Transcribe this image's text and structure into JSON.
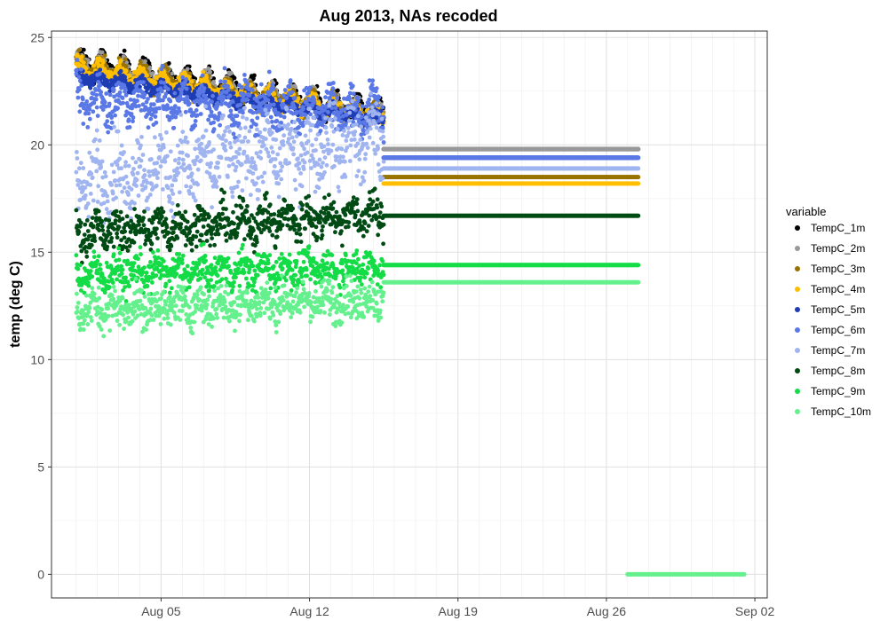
{
  "chart_data": {
    "type": "scatter",
    "title": "Aug 2013, NAs recoded",
    "xlabel": "",
    "ylabel": "temp (deg C)",
    "x_type": "date",
    "xlim": [
      "2013-07-30T20:00",
      "2013-09-02T14:00"
    ],
    "ylim": [
      -1.1,
      25.3
    ],
    "x_ticks": [
      {
        "date": "2013-08-05",
        "label": "Aug 05"
      },
      {
        "date": "2013-08-12",
        "label": "Aug 12"
      },
      {
        "date": "2013-08-19",
        "label": "Aug 19"
      },
      {
        "date": "2013-08-26",
        "label": "Aug 26"
      },
      {
        "date": "2013-09-02",
        "label": "Sep 02"
      }
    ],
    "y_ticks": [
      0,
      5,
      10,
      15,
      20,
      25
    ],
    "grid": true,
    "legend": {
      "title": "variable",
      "position": "right"
    },
    "series": [
      {
        "name": "TempC_1m",
        "color": "#000000",
        "measured": {
          "start": "2013-08-01T00:00",
          "end": "2013-08-15T12:00",
          "level_start": 23.9,
          "level_end": 21.4,
          "daily_amplitude": 0.45,
          "noise": 0.2
        },
        "flat": {
          "start": "2013-08-15T12:00",
          "end": "2013-08-27T12:00",
          "value": 19.8
        }
      },
      {
        "name": "TempC_2m",
        "color": "#999999",
        "measured": {
          "start": "2013-08-01T00:00",
          "end": "2013-08-15T12:00",
          "level_start": 23.8,
          "level_end": 21.4,
          "daily_amplitude": 0.4,
          "noise": 0.2
        },
        "flat": {
          "start": "2013-08-15T12:00",
          "end": "2013-08-27T12:00",
          "value": 19.8
        }
      },
      {
        "name": "TempC_3m",
        "color": "#997300",
        "measured": {
          "start": "2013-08-01T00:00",
          "end": "2013-08-15T12:00",
          "level_start": 23.7,
          "level_end": 21.3,
          "daily_amplitude": 0.35,
          "noise": 0.2
        },
        "flat": {
          "start": "2013-08-15T12:00",
          "end": "2013-08-27T12:00",
          "value": 18.5
        }
      },
      {
        "name": "TempC_4m",
        "color": "#FFBF00",
        "measured": {
          "start": "2013-08-01T00:00",
          "end": "2013-08-15T12:00",
          "level_start": 23.6,
          "level_end": 21.3,
          "daily_amplitude": 0.3,
          "noise": 0.2
        },
        "flat": {
          "start": "2013-08-15T12:00",
          "end": "2013-08-27T12:00",
          "value": 18.2
        }
      },
      {
        "name": "TempC_5m",
        "color": "#1E3CB4",
        "measured": {
          "start": "2013-08-01T00:00",
          "end": "2013-08-15T12:00",
          "level_start": 23.2,
          "level_end": 21.2,
          "daily_amplitude": 0.2,
          "noise": 0.15
        },
        "flat": {
          "start": "2013-08-15T12:00",
          "end": "2013-08-27T12:00",
          "value": 19.4
        }
      },
      {
        "name": "TempC_6m",
        "color": "#5A78E6",
        "measured": {
          "start": "2013-08-01T00:00",
          "end": "2013-08-15T12:00",
          "level_start": 22.1,
          "level_end": 21.6,
          "daily_amplitude": 0.6,
          "noise": 0.5
        },
        "flat": {
          "start": "2013-08-15T12:00",
          "end": "2013-08-27T12:00",
          "value": 19.4
        }
      },
      {
        "name": "TempC_7m",
        "color": "#A0B4F0",
        "measured": {
          "start": "2013-08-01T00:00",
          "end": "2013-08-15T12:00",
          "level_start": 18.3,
          "level_end": 20.3,
          "daily_amplitude": 0.8,
          "noise": 0.8
        },
        "flat": {
          "start": "2013-08-15T12:00",
          "end": "2013-08-27T12:00",
          "value": 18.9
        }
      },
      {
        "name": "TempC_8m",
        "color": "#004B14",
        "measured": {
          "start": "2013-08-01T00:00",
          "end": "2013-08-15T12:00",
          "level_start": 15.9,
          "level_end": 16.8,
          "daily_amplitude": 0.4,
          "noise": 0.45
        },
        "flat": {
          "start": "2013-08-15T12:00",
          "end": "2013-08-27T12:00",
          "value": 16.7
        }
      },
      {
        "name": "TempC_9m",
        "color": "#14DC46",
        "measured": {
          "start": "2013-08-01T00:00",
          "end": "2013-08-15T12:00",
          "level_start": 14.0,
          "level_end": 14.3,
          "daily_amplitude": 0.3,
          "noise": 0.4
        },
        "flat": {
          "start": "2013-08-15T12:00",
          "end": "2013-08-27T12:00",
          "value": 14.4
        }
      },
      {
        "name": "TempC_10m",
        "color": "#64F08C",
        "measured": {
          "start": "2013-08-01T00:00",
          "end": "2013-08-15T12:00",
          "level_start": 12.3,
          "level_end": 12.8,
          "daily_amplitude": 0.3,
          "noise": 0.45
        },
        "flat": {
          "start": "2013-08-15T12:00",
          "end": "2013-08-27T12:00",
          "value": 13.6
        },
        "flat2": {
          "start": "2013-08-27T00:00",
          "end": "2013-09-01T12:00",
          "value": 0
        }
      }
    ]
  }
}
